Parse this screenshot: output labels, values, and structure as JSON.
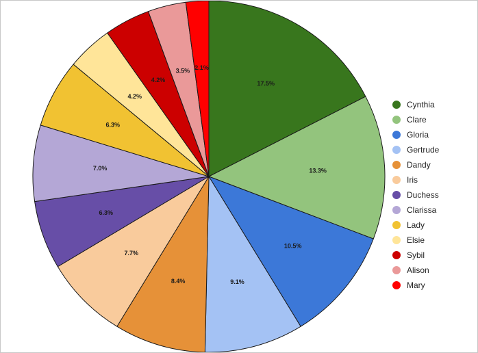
{
  "chart_data": {
    "type": "pie",
    "title": "",
    "legend_position": "right",
    "slices": [
      {
        "label": "Cynthia",
        "value": 17.5,
        "display": "17.5%",
        "color": "#38761d"
      },
      {
        "label": "Clare",
        "value": 13.3,
        "display": "13.3%",
        "color": "#93c47d"
      },
      {
        "label": "Gloria",
        "value": 10.5,
        "display": "10.5%",
        "color": "#3c78d8"
      },
      {
        "label": "Gertrude",
        "value": 9.1,
        "display": "9.1%",
        "color": "#a4c2f4"
      },
      {
        "label": "Dandy",
        "value": 8.4,
        "display": "8.4%",
        "color": "#e69138"
      },
      {
        "label": "Iris",
        "value": 7.7,
        "display": "7.7%",
        "color": "#f9cb9c"
      },
      {
        "label": "Duchess",
        "value": 6.3,
        "display": "6.3%",
        "color": "#674ea7"
      },
      {
        "label": "Clarissa",
        "value": 7.0,
        "display": "7.0%",
        "color": "#b4a7d6"
      },
      {
        "label": "Lady",
        "value": 6.3,
        "display": "6.3%",
        "color": "#f1c232"
      },
      {
        "label": "Elsie",
        "value": 4.2,
        "display": "4.2%",
        "color": "#ffe599"
      },
      {
        "label": "Sybil",
        "value": 4.2,
        "display": "4.2%",
        "color": "#cc0000"
      },
      {
        "label": "Alison",
        "value": 3.5,
        "display": "3.5%",
        "color": "#ea9999"
      },
      {
        "label": "Mary",
        "value": 2.1,
        "display": "2.1%",
        "color": "#ff0000"
      }
    ]
  }
}
